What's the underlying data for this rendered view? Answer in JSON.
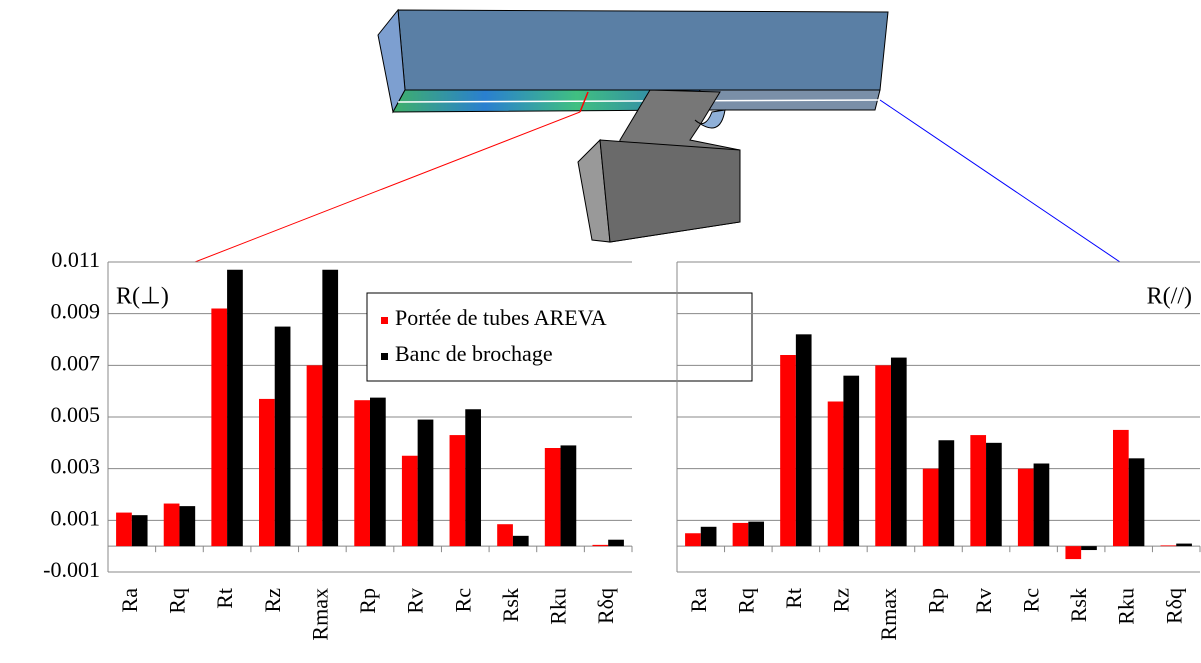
{
  "chart_data": [
    {
      "type": "bar",
      "label": "R(⊥)",
      "label_color": "#8b1a1a",
      "categories": [
        "Ra",
        "Rq",
        "Rt",
        "Rz",
        "Rmax",
        "Rp",
        "Rv",
        "Rc",
        "Rsk",
        "Rku",
        "Rδq"
      ],
      "series": [
        {
          "name": "Portée de tubes AREVA",
          "color": "#ff0000",
          "values": [
            0.0013,
            0.00165,
            0.0092,
            0.0057,
            0.007,
            0.00565,
            0.0035,
            0.0043,
            0.00085,
            0.0038,
            5e-05
          ]
        },
        {
          "name": "Banc de brochage",
          "color": "#000000",
          "values": [
            0.0012,
            0.00155,
            0.0107,
            0.0085,
            0.0107,
            0.00575,
            0.0049,
            0.0053,
            0.0004,
            0.0039,
            0.00025
          ]
        }
      ],
      "ylim": [
        -0.001,
        0.011
      ],
      "yticks": [
        -0.001,
        0.001,
        0.003,
        0.005,
        0.007,
        0.009,
        0.011
      ],
      "grid": true,
      "tick_labels": true,
      "legend": true,
      "label_corner": "left"
    },
    {
      "type": "bar",
      "label": "R(//)",
      "label_color": "#1a1a8b",
      "categories": [
        "Ra",
        "Rq",
        "Rt",
        "Rz",
        "Rmax",
        "Rp",
        "Rv",
        "Rc",
        "Rsk",
        "Rku",
        "Rδq"
      ],
      "series": [
        {
          "color": "#ff0000",
          "values": [
            0.0005,
            0.0009,
            0.0074,
            0.0056,
            0.007,
            0.003,
            0.0043,
            0.003,
            -0.0005,
            0.0045,
            3e-05
          ]
        },
        {
          "color": "#000000",
          "values": [
            0.00075,
            0.00095,
            0.0082,
            0.0066,
            0.0073,
            0.0041,
            0.004,
            0.0032,
            -0.00015,
            0.0034,
            0.0001
          ]
        }
      ],
      "ylim": [
        -0.001,
        0.011
      ],
      "yticks": [
        -0.001,
        0.001,
        0.003,
        0.005,
        0.007,
        0.009,
        0.011
      ],
      "grid": true,
      "tick_labels": false,
      "legend": false,
      "label_corner": "right"
    }
  ]
}
